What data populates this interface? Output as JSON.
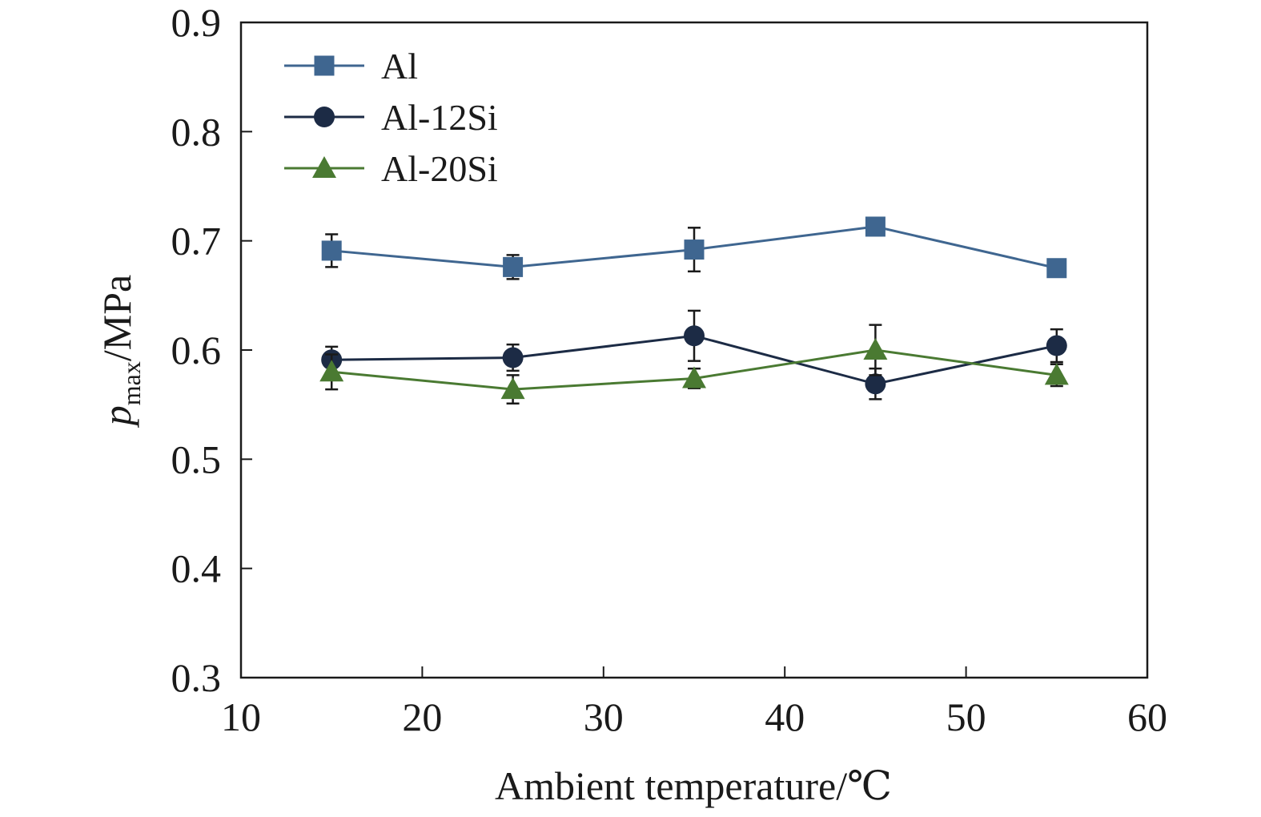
{
  "chart_data": {
    "type": "line",
    "xlabel": "Ambient temperature/℃",
    "ylabel_main": "p",
    "ylabel_sub": "max",
    "ylabel_unit": "/MPa",
    "xlim": [
      10,
      60
    ],
    "ylim": [
      0.3,
      0.9
    ],
    "xticks": [
      "10",
      "20",
      "30",
      "40",
      "50",
      "60"
    ],
    "yticks": [
      "0.3",
      "0.4",
      "0.5",
      "0.6",
      "0.7",
      "0.8",
      "0.9"
    ],
    "grid": false,
    "legend_position": "top-left",
    "x": [
      15,
      25,
      35,
      45,
      55
    ],
    "series": [
      {
        "name": "Al",
        "marker": "square",
        "color": "#3f6690",
        "values": [
          0.691,
          0.676,
          0.692,
          0.713,
          0.675
        ],
        "errors": [
          0.015,
          0.011,
          0.02,
          0.008,
          0.008
        ]
      },
      {
        "name": "Al-12Si",
        "marker": "circle",
        "color": "#1c2b45",
        "values": [
          0.591,
          0.593,
          0.613,
          0.569,
          0.604
        ],
        "errors": [
          0.012,
          0.012,
          0.023,
          0.014,
          0.015
        ]
      },
      {
        "name": "Al-20Si",
        "marker": "triangle",
        "color": "#4a7a32",
        "values": [
          0.58,
          0.564,
          0.574,
          0.6,
          0.577
        ],
        "errors": [
          0.016,
          0.013,
          0.009,
          0.023,
          0.01
        ]
      }
    ]
  }
}
